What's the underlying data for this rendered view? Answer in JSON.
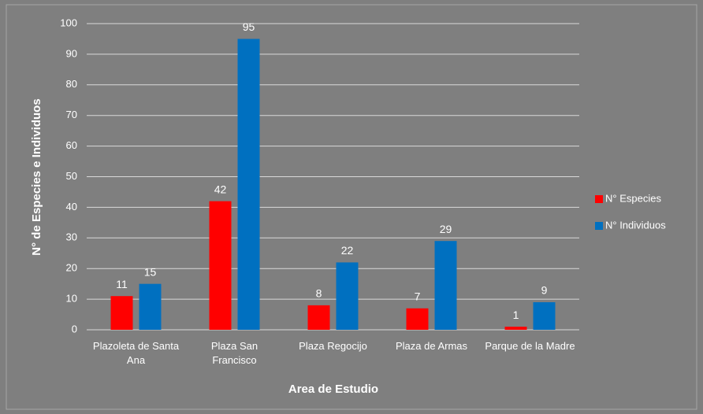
{
  "chart_data": {
    "type": "bar",
    "categories": [
      "Plazoleta de Santa Ana",
      "Plaza San Francisco",
      "Plaza Regocijo",
      "Plaza de Armas",
      "Parque de la Madre"
    ],
    "series": [
      {
        "name": "N° Especies",
        "color": "#ff0000",
        "values": [
          11,
          42,
          8,
          7,
          1
        ]
      },
      {
        "name": "N° Individuos",
        "color": "#0070c0",
        "values": [
          15,
          95,
          22,
          29,
          9
        ]
      }
    ],
    "xlabel": "Area de Estudio",
    "ylabel": "N° de Especies e Individuos",
    "ylim": [
      0,
      100
    ],
    "yticks": [
      0,
      10,
      20,
      30,
      40,
      50,
      60,
      70,
      80,
      90,
      100
    ],
    "grid": true,
    "legend": "right"
  }
}
